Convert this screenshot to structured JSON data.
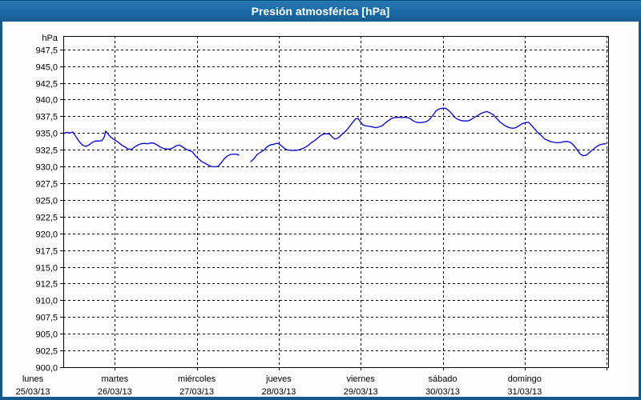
{
  "window": {
    "title": "Presión atmosférica [hPa]"
  },
  "colors": {
    "titlebar": "#1b69a4",
    "frame_border": "#14578d",
    "series_line": "#0000cc",
    "grid": "#000000",
    "text": "#000000",
    "title_text": "#ffffff",
    "panel_bg": "#fdfdfd"
  },
  "chart_data": {
    "type": "line",
    "title": "Presión atmosférica [hPa]",
    "ylabel": "hPa",
    "xlabel": "",
    "grid": true,
    "legend": false,
    "ylim": [
      900,
      949.5
    ],
    "y_tick_step": 2.5,
    "y_ticks": [
      {
        "value": 947.5,
        "label": "947,5"
      },
      {
        "value": 945.0,
        "label": "945,0"
      },
      {
        "value": 942.5,
        "label": "942,5"
      },
      {
        "value": 940.0,
        "label": "940,0"
      },
      {
        "value": 937.5,
        "label": "937,5"
      },
      {
        "value": 935.0,
        "label": "935,0"
      },
      {
        "value": 932.5,
        "label": "932,5"
      },
      {
        "value": 930.0,
        "label": "930,0"
      },
      {
        "value": 927.5,
        "label": "927,5"
      },
      {
        "value": 925.0,
        "label": "925,0"
      },
      {
        "value": 922.5,
        "label": "922,5"
      },
      {
        "value": 920.0,
        "label": "920,0"
      },
      {
        "value": 917.5,
        "label": "917,5"
      },
      {
        "value": 915.0,
        "label": "915,0"
      },
      {
        "value": 912.5,
        "label": "912,5"
      },
      {
        "value": 910.0,
        "label": "910,0"
      },
      {
        "value": 907.5,
        "label": "907,5"
      },
      {
        "value": 905.0,
        "label": "905,0"
      },
      {
        "value": 902.5,
        "label": "902,5"
      },
      {
        "value": 900.0,
        "label": "900,0"
      }
    ],
    "x_axis": {
      "unit": "days",
      "days": [
        {
          "name": "lunes",
          "date": "25/03/13"
        },
        {
          "name": "martes",
          "date": "26/03/13"
        },
        {
          "name": "miércoles",
          "date": "27/03/13"
        },
        {
          "name": "jueves",
          "date": "28/03/13"
        },
        {
          "name": "viernes",
          "date": "29/03/13"
        },
        {
          "name": "sábado",
          "date": "30/03/13"
        },
        {
          "name": "domingo",
          "date": "31/03/13"
        }
      ],
      "boundary_gridlines": 7
    },
    "series": [
      {
        "name": "Presión atmosférica",
        "color": "#0000cc",
        "x_unit": "hours_since_monday_00",
        "points": [
          [
            8.9,
            934.9
          ],
          [
            9.9,
            935.1
          ],
          [
            10.8,
            935.0
          ],
          [
            11.7,
            935.15
          ],
          [
            12.7,
            934.4
          ],
          [
            13.6,
            933.7
          ],
          [
            14.5,
            933.2
          ],
          [
            15.5,
            933.0
          ],
          [
            16.4,
            933.2
          ],
          [
            17.4,
            933.6
          ],
          [
            18.3,
            933.8
          ],
          [
            19.2,
            933.8
          ],
          [
            20.2,
            933.85
          ],
          [
            20.9,
            934.4
          ],
          [
            21.3,
            935.3
          ],
          [
            22.1,
            934.8
          ],
          [
            22.8,
            934.4
          ],
          [
            23.5,
            934.1
          ],
          [
            24.2,
            933.9
          ],
          [
            25.1,
            933.6
          ],
          [
            26.0,
            933.2
          ],
          [
            27.0,
            932.9
          ],
          [
            27.9,
            932.6
          ],
          [
            28.9,
            932.55
          ],
          [
            29.8,
            932.9
          ],
          [
            30.7,
            933.2
          ],
          [
            31.7,
            933.4
          ],
          [
            32.6,
            933.45
          ],
          [
            33.5,
            933.4
          ],
          [
            34.5,
            933.5
          ],
          [
            35.4,
            933.5
          ],
          [
            36.4,
            933.2
          ],
          [
            37.3,
            932.9
          ],
          [
            38.2,
            932.7
          ],
          [
            39.2,
            932.6
          ],
          [
            40.1,
            932.6
          ],
          [
            41.1,
            932.8
          ],
          [
            42.0,
            933.1
          ],
          [
            42.9,
            933.2
          ],
          [
            43.9,
            932.9
          ],
          [
            44.8,
            932.6
          ],
          [
            45.7,
            932.4
          ],
          [
            46.7,
            932.2
          ],
          [
            47.6,
            931.6
          ],
          [
            48.6,
            931.1
          ],
          [
            49.5,
            930.7
          ],
          [
            50.4,
            930.5
          ],
          [
            51.4,
            930.2
          ],
          [
            52.3,
            930.0
          ],
          [
            53.3,
            929.95
          ],
          [
            54.2,
            930.0
          ],
          [
            55.1,
            930.5
          ],
          [
            56.1,
            931.2
          ],
          [
            57.0,
            931.6
          ],
          [
            57.9,
            931.8
          ],
          [
            58.9,
            931.85
          ],
          [
            59.8,
            931.8
          ],
          [
            60.3,
            931.7
          ],
          null,
          [
            63.8,
            930.7
          ],
          [
            64.8,
            931.2
          ],
          [
            65.7,
            931.8
          ],
          [
            66.6,
            932.1
          ],
          [
            67.6,
            932.4
          ],
          [
            68.5,
            932.9
          ],
          [
            69.4,
            933.2
          ],
          [
            70.4,
            933.3
          ],
          [
            71.3,
            933.45
          ],
          [
            72.0,
            933.4
          ],
          [
            73.0,
            933.0
          ],
          [
            73.9,
            932.6
          ],
          [
            74.8,
            932.45
          ],
          [
            75.8,
            932.4
          ],
          [
            76.7,
            932.4
          ],
          [
            77.7,
            932.45
          ],
          [
            78.6,
            932.6
          ],
          [
            79.5,
            932.8
          ],
          [
            80.5,
            933.1
          ],
          [
            81.4,
            933.5
          ],
          [
            82.3,
            933.8
          ],
          [
            83.3,
            934.2
          ],
          [
            84.2,
            934.6
          ],
          [
            85.2,
            934.85
          ],
          [
            86.1,
            934.9
          ],
          [
            87.0,
            934.8
          ],
          [
            87.7,
            934.4
          ],
          [
            88.4,
            934.1
          ],
          [
            89.2,
            934.2
          ],
          [
            90.1,
            934.6
          ],
          [
            91.0,
            935.0
          ],
          [
            92.0,
            935.5
          ],
          [
            92.9,
            936.1
          ],
          [
            93.8,
            936.7
          ],
          [
            94.5,
            937.1
          ],
          [
            95.2,
            937.2
          ],
          [
            96.0,
            936.6
          ],
          [
            96.7,
            936.2
          ],
          [
            97.6,
            936.05
          ],
          [
            98.5,
            936.0
          ],
          [
            99.5,
            935.9
          ],
          [
            100.4,
            935.8
          ],
          [
            101.3,
            935.9
          ],
          [
            102.3,
            936.1
          ],
          [
            103.2,
            936.5
          ],
          [
            104.2,
            936.9
          ],
          [
            105.1,
            937.2
          ],
          [
            106.0,
            937.3
          ],
          [
            107.0,
            937.35
          ],
          [
            107.9,
            937.3
          ],
          [
            108.8,
            937.35
          ],
          [
            109.8,
            937.3
          ],
          [
            110.7,
            937.1
          ],
          [
            111.4,
            936.8
          ],
          [
            112.4,
            936.6
          ],
          [
            113.3,
            936.55
          ],
          [
            114.3,
            936.6
          ],
          [
            115.2,
            936.7
          ],
          [
            116.1,
            937.0
          ],
          [
            117.1,
            937.6
          ],
          [
            118.0,
            938.3
          ],
          [
            118.9,
            938.6
          ],
          [
            119.9,
            938.7
          ],
          [
            120.8,
            938.7
          ],
          [
            121.7,
            938.4
          ],
          [
            122.7,
            937.9
          ],
          [
            123.6,
            937.3
          ],
          [
            124.6,
            937.0
          ],
          [
            125.5,
            936.85
          ],
          [
            126.4,
            936.8
          ],
          [
            127.4,
            936.8
          ],
          [
            128.3,
            937.0
          ],
          [
            129.2,
            937.3
          ],
          [
            130.2,
            937.6
          ],
          [
            131.1,
            937.9
          ],
          [
            132.1,
            938.1
          ],
          [
            133.0,
            938.2
          ],
          [
            133.9,
            938.0
          ],
          [
            134.9,
            937.7
          ],
          [
            135.8,
            937.2
          ],
          [
            136.7,
            936.7
          ],
          [
            137.7,
            936.3
          ],
          [
            138.6,
            936.0
          ],
          [
            139.6,
            935.8
          ],
          [
            140.5,
            935.7
          ],
          [
            141.4,
            935.8
          ],
          [
            142.4,
            936.1
          ],
          [
            143.3,
            936.4
          ],
          [
            144.2,
            936.55
          ],
          [
            145.2,
            936.6
          ],
          [
            146.1,
            936.1
          ],
          [
            147.1,
            935.5
          ],
          [
            148.0,
            935.0
          ],
          [
            148.9,
            934.6
          ],
          [
            149.9,
            934.1
          ],
          [
            150.8,
            933.9
          ],
          [
            151.7,
            933.7
          ],
          [
            152.7,
            933.6
          ],
          [
            153.6,
            933.55
          ],
          [
            154.6,
            933.6
          ],
          [
            155.5,
            933.7
          ],
          [
            156.4,
            933.75
          ],
          [
            157.4,
            933.6
          ],
          [
            158.3,
            933.2
          ],
          [
            159.2,
            932.6
          ],
          [
            160.2,
            931.9
          ],
          [
            161.1,
            931.6
          ],
          [
            162.1,
            931.7
          ],
          [
            163.0,
            932.1
          ],
          [
            163.9,
            932.5
          ],
          [
            164.9,
            932.9
          ],
          [
            165.8,
            933.2
          ],
          [
            166.7,
            933.35
          ],
          [
            167.7,
            933.4
          ]
        ]
      }
    ]
  }
}
